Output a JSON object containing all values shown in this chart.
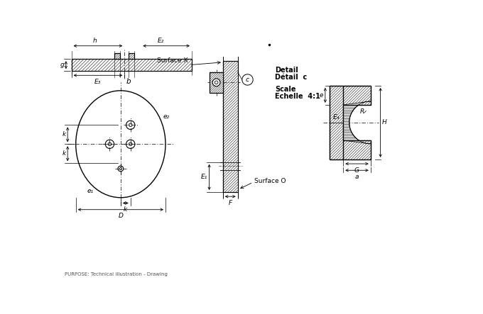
{
  "bg_color": "#ffffff",
  "line_color": "#000000",
  "detail_text1": "Detail",
  "detail_text2": "Détail  c",
  "scale_text1": "Scale",
  "scale_text2": "Echelle  4:1",
  "bottom_text": "PURPOSE: Technical illustration - Drawing",
  "labels": {
    "h": "h",
    "E2": "E₂",
    "g": "g",
    "E3": "E₃",
    "b": "b",
    "e2": "e₂",
    "k": "k",
    "e1": "e₁",
    "D": "D",
    "surface_x": "Surface X",
    "c": "c",
    "E1": "E₁",
    "surface_o": "Surface O",
    "F": "F",
    "e": "e",
    "E4": "E₄",
    "R": "R",
    "H": "H",
    "G": "G",
    "a": "a"
  }
}
